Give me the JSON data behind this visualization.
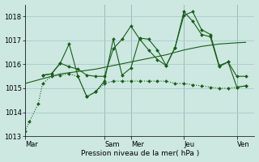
{
  "background_color": "#cce8e0",
  "grid_color": "#aacccc",
  "line_color": "#1a5c1a",
  "title": "Pression niveau de la mer( hPa )",
  "ylim": [
    1013.0,
    1018.5
  ],
  "yticks": [
    1013,
    1014,
    1015,
    1016,
    1017,
    1018
  ],
  "day_labels": [
    "Mar",
    "Sam",
    "Mer",
    "Jeu",
    "Ven"
  ],
  "day_positions": [
    0,
    9,
    12,
    18,
    24
  ],
  "xlim": [
    0,
    26
  ],
  "series": [
    {
      "x": [
        0,
        0.5,
        1.5,
        2,
        3,
        4,
        5,
        6,
        7,
        8,
        9,
        10,
        11,
        12,
        13,
        14,
        15,
        16,
        17,
        18,
        19,
        20,
        21,
        22,
        23,
        24,
        25
      ],
      "y": [
        1013.2,
        1013.6,
        1014.35,
        1015.2,
        1015.5,
        1015.55,
        1015.6,
        1015.5,
        1014.65,
        1014.85,
        1015.2,
        1015.3,
        1015.3,
        1015.3,
        1015.3,
        1015.3,
        1015.3,
        1015.3,
        1015.2,
        1015.2,
        1015.15,
        1015.1,
        1015.05,
        1015.0,
        1015.0,
        1015.05,
        1015.1
      ],
      "style": "dotted",
      "marker": "D",
      "markersize": 2.0
    },
    {
      "x": [
        0,
        2,
        4,
        6,
        8,
        10,
        12,
        14,
        16,
        18,
        20,
        22,
        24,
        25
      ],
      "y": [
        1015.2,
        1015.4,
        1015.6,
        1015.7,
        1015.8,
        1015.95,
        1016.1,
        1016.25,
        1016.4,
        1016.6,
        1016.75,
        1016.85,
        1016.9,
        1016.92
      ],
      "style": "solid",
      "marker": null,
      "markersize": 0
    },
    {
      "x": [
        2,
        3,
        4,
        5,
        6,
        7,
        8,
        9,
        10,
        11,
        12,
        13,
        14,
        15,
        16,
        17,
        18,
        19,
        20,
        21,
        22,
        23,
        24,
        25
      ],
      "y": [
        1015.55,
        1015.6,
        1016.05,
        1016.85,
        1015.5,
        1014.65,
        1014.85,
        1015.3,
        1017.05,
        1015.55,
        1015.85,
        1017.1,
        1017.05,
        1016.6,
        1015.95,
        1016.7,
        1018.2,
        1017.8,
        1017.25,
        1017.15,
        1015.9,
        1016.1,
        1015.05,
        1015.1
      ],
      "style": "solid",
      "marker": "D",
      "markersize": 2.0
    },
    {
      "x": [
        2,
        3,
        4,
        5,
        6,
        7,
        8,
        9,
        10,
        11,
        12,
        13,
        14,
        15,
        16,
        17,
        18,
        19,
        20,
        21,
        22,
        23,
        24,
        25
      ],
      "y": [
        1015.55,
        1015.6,
        1016.05,
        1015.9,
        1015.8,
        1015.55,
        1015.5,
        1015.5,
        1016.65,
        1017.05,
        1017.6,
        1017.05,
        1016.6,
        1016.2,
        1015.95,
        1016.7,
        1018.05,
        1018.2,
        1017.45,
        1017.25,
        1015.95,
        1016.1,
        1015.5,
        1015.5
      ],
      "style": "solid",
      "marker": "D",
      "markersize": 2.0
    }
  ]
}
